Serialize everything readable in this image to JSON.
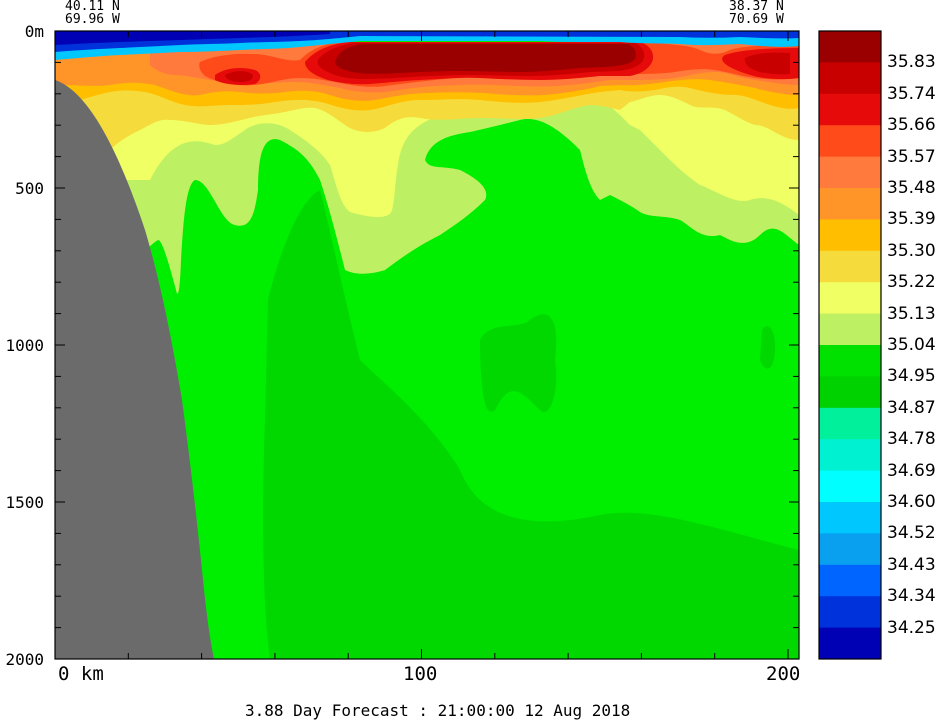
{
  "chart_data": {
    "type": "heatmap",
    "title": "",
    "corner_left": {
      "lat": "40.11 N",
      "lon": "69.96 W"
    },
    "corner_right": {
      "lat": "38.37 N",
      "lon": "70.69 W"
    },
    "ylabel": "",
    "yticks": [
      {
        "value": 0,
        "label": "0m"
      },
      {
        "value": 500,
        "label": "500"
      },
      {
        "value": 1000,
        "label": "1000"
      },
      {
        "value": 1500,
        "label": "1500"
      },
      {
        "value": 2000,
        "label": "2000"
      }
    ],
    "ylim": [
      0,
      2000
    ],
    "xticks": [
      {
        "value": 0,
        "label": "0 km"
      },
      {
        "value": 100,
        "label": "100"
      },
      {
        "value": 200,
        "label": "200"
      }
    ],
    "xlim": [
      0,
      203
    ],
    "colorbar": {
      "levels": [
        "35.83",
        "35.74",
        "35.66",
        "35.57",
        "35.48",
        "35.39",
        "35.30",
        "35.22",
        "35.13",
        "35.04",
        "34.95",
        "34.87",
        "34.78",
        "34.69",
        "34.60",
        "34.52",
        "34.43",
        "34.34",
        "34.25"
      ],
      "colors": [
        "#9b0000",
        "#c80000",
        "#e60a0a",
        "#ff4a1a",
        "#ff7a3c",
        "#ff9428",
        "#ffbe00",
        "#f5dc3c",
        "#f0ff64",
        "#bef064",
        "#00e100",
        "#00d200",
        "#00f09b",
        "#00f0d2",
        "#00ffff",
        "#00c8ff",
        "#0aa0f0",
        "#0064ff",
        "#0032dc",
        "#0000b4"
      ]
    },
    "colors_key": {
      "deep_red": "#9b0000",
      "red": "#dc0000",
      "orange": "#ff9428",
      "yellow": "#f0ff64",
      "light_green": "#bef064",
      "green": "#00ee00",
      "green_dark": "#00d800",
      "blue": "#0000c8",
      "land": "#6b6b6b"
    },
    "caption": "3.88 Day Forecast : 21:00:00  12 Aug 2018"
  }
}
